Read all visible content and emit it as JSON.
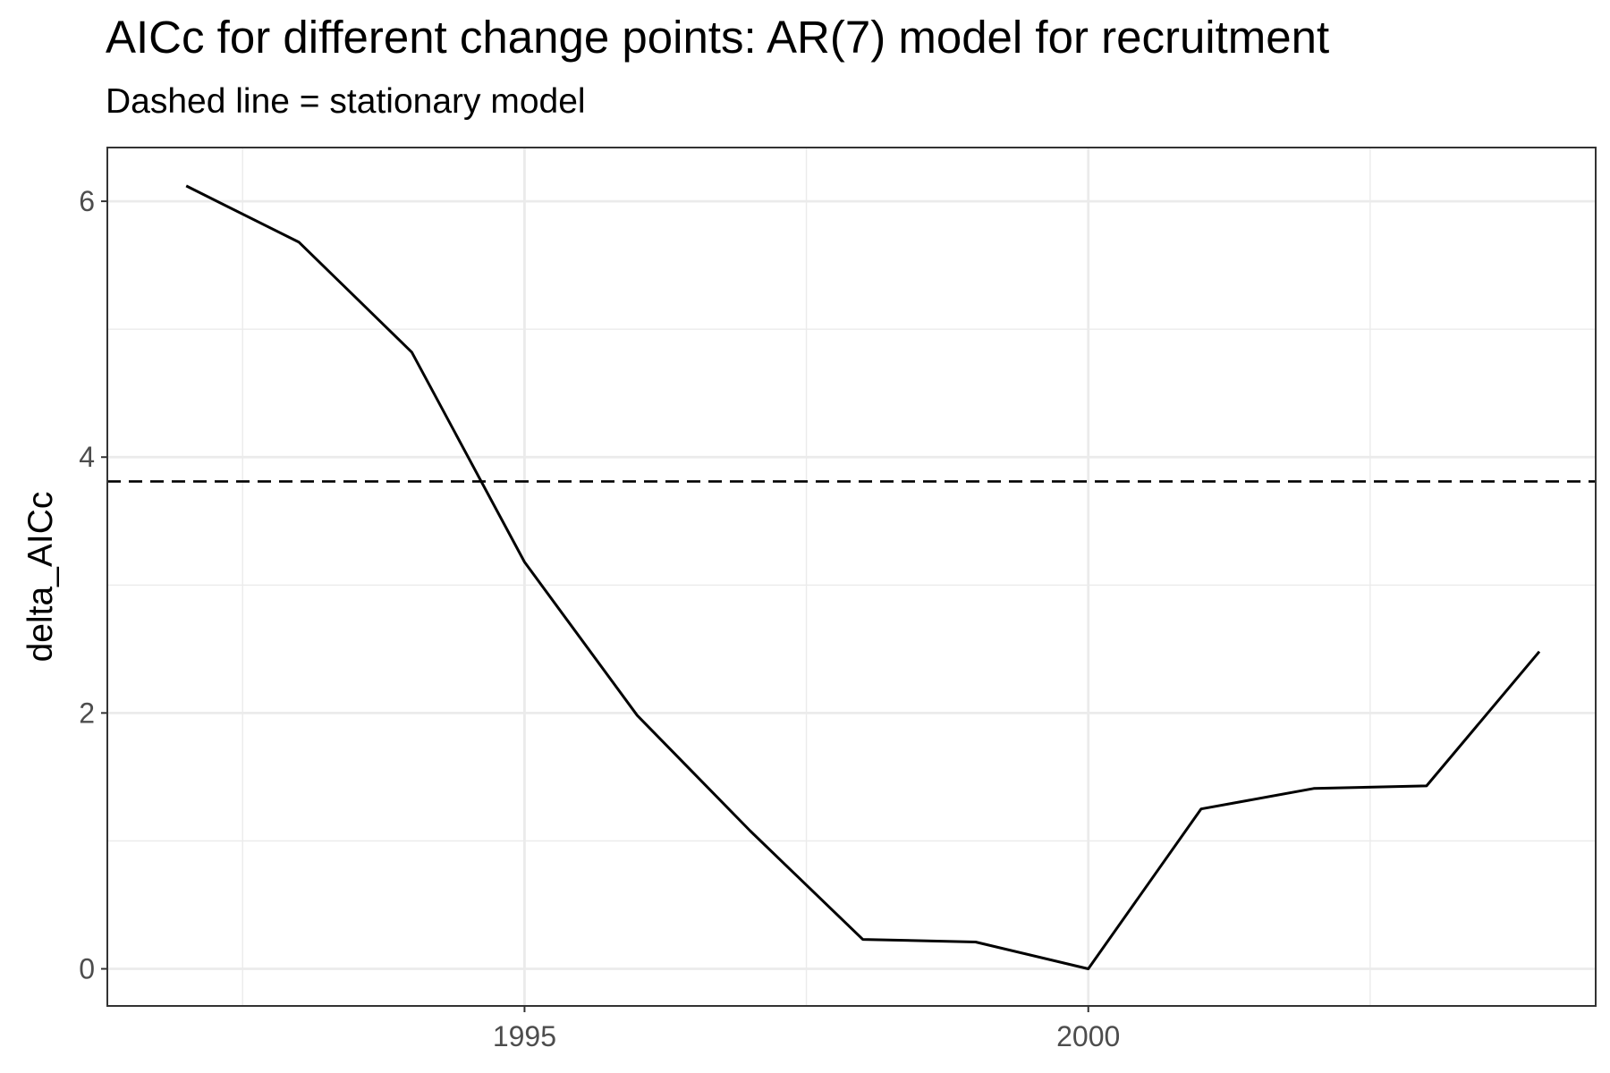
{
  "chart_data": {
    "type": "line",
    "title": "AICc for different change points: AR(7) model for recruitment",
    "subtitle": "Dashed line = stationary model",
    "xlabel": "",
    "ylabel": "delta_AICc",
    "x": [
      1992,
      1993,
      1994,
      1995,
      1996,
      1997,
      1998,
      1999,
      2000,
      2001,
      2002,
      2003,
      2004
    ],
    "series": [
      {
        "values": [
          6.12,
          5.68,
          4.82,
          3.18,
          1.98,
          1.08,
          0.23,
          0.21,
          0.0,
          1.25,
          1.41,
          1.43,
          2.48
        ]
      }
    ],
    "reference_line": {
      "y": 3.81,
      "style": "dashed"
    },
    "xlim": [
      1991.3,
      2004.5
    ],
    "ylim": [
      -0.29,
      6.42
    ],
    "x_ticks": [
      1995,
      2000
    ],
    "x_tick_labels": [
      "1995",
      "2000"
    ],
    "y_ticks": [
      0,
      2,
      4,
      6
    ],
    "y_tick_labels": [
      "0",
      "2",
      "4",
      "6"
    ],
    "grid": true,
    "colors": {
      "line": "#000000",
      "grid": "#ebebeb",
      "panel_border": "#333333"
    }
  }
}
